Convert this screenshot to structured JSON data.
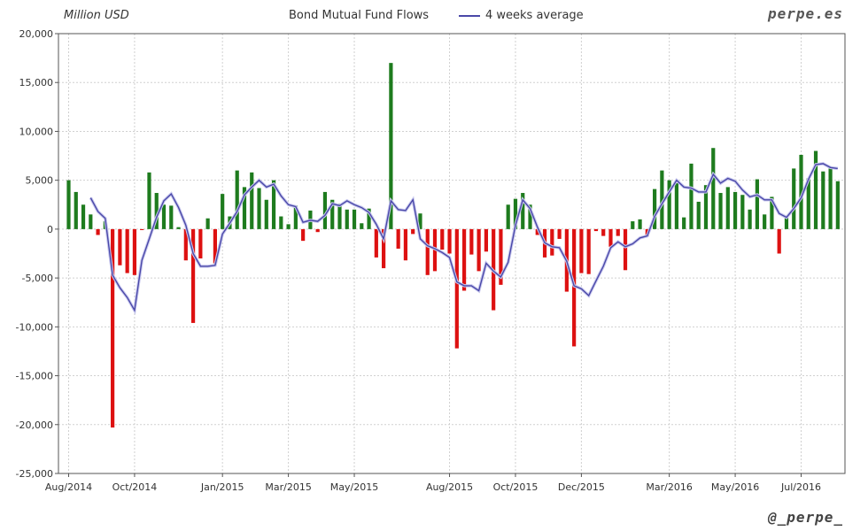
{
  "chart_data": {
    "type": "bar",
    "title": "Bond Mutual Fund Flows",
    "ylabel": "Million USD",
    "brand": "perpe.es",
    "handle": "@_perpe_",
    "ylim": [
      -25000,
      20000
    ],
    "yticks": [
      -25000,
      -20000,
      -15000,
      -10000,
      -5000,
      0,
      5000,
      10000,
      15000,
      20000
    ],
    "ytick_labels": [
      "-25,000",
      "-20,000",
      "-15,000",
      "-10,000",
      "-5,000",
      "0",
      "5,000",
      "10,000",
      "15,000",
      "20,000"
    ],
    "xtick_labels": [
      "Aug/2014",
      "Oct/2014",
      "Jan/2015",
      "Mar/2015",
      "May/2015",
      "Aug/2015",
      "Oct/2015",
      "Dec/2015",
      "Mar/2016",
      "May/2016",
      "Jul/2016"
    ],
    "xtick_weeks": [
      0,
      9,
      21,
      30,
      39,
      52,
      61,
      70,
      82,
      91,
      100
    ],
    "grid": true,
    "legend_position": "top-center",
    "colors": {
      "positive": "#1e7b1e",
      "negative": "#dd1111",
      "average": "#4a48a8"
    },
    "series": [
      {
        "name": "Bond Mutual Fund Flows",
        "values": [
          5000,
          3800,
          2500,
          1500,
          -600,
          800,
          -20300,
          -3700,
          -4500,
          -4700,
          -100,
          5800,
          3700,
          2500,
          2400,
          200,
          -3200,
          -9600,
          -3000,
          1100,
          -3500,
          3600,
          1300,
          6000,
          4300,
          5800,
          4200,
          3000,
          5000,
          1300,
          500,
          2400,
          -1200,
          1900,
          -300,
          3800,
          3000,
          2600,
          2000,
          2000,
          600,
          2100,
          -2900,
          -4000,
          17000,
          -2000,
          -3200,
          -500,
          1600,
          -4700,
          -4300,
          -2100,
          -2500,
          -12200,
          -6300,
          -2600,
          -4300,
          -2300,
          -8300,
          -5700,
          2500,
          3100,
          3700,
          2500,
          -600,
          -2900,
          -2700,
          -1000,
          -6400,
          -12000,
          -4500,
          -4600,
          -200,
          -700,
          -1800,
          -700,
          -4200,
          800,
          1000,
          -700,
          4100,
          6000,
          5000,
          4700,
          1200,
          6700,
          2800,
          4500,
          8300,
          3700,
          4300,
          3800,
          3500,
          2000,
          5100,
          1500,
          3300,
          -2500,
          1200,
          6200,
          7600,
          5200,
          8000,
          5900,
          6200,
          4900
        ]
      },
      {
        "name": "4 weeks average",
        "values": [
          null,
          null,
          null,
          3200,
          1800,
          1100,
          -4700,
          -6000,
          -7000,
          -8300,
          -3200,
          -1000,
          1200,
          2900,
          3600,
          2200,
          400,
          -2500,
          -3800,
          -3800,
          -3700,
          -500,
          600,
          1800,
          3500,
          4300,
          5000,
          4300,
          4600,
          3400,
          2500,
          2300,
          700,
          900,
          800,
          1400,
          2600,
          2400,
          2900,
          2500,
          2200,
          1700,
          500,
          -1000,
          2900,
          2000,
          1900,
          3000,
          -1000,
          -1700,
          -2000,
          -2400,
          -2900,
          -5400,
          -5800,
          -5800,
          -6300,
          -3500,
          -4300,
          -4900,
          -3400,
          400,
          3000,
          2100,
          200,
          -1400,
          -1800,
          -1900,
          -3300,
          -5800,
          -6100,
          -6800,
          -5300,
          -3800,
          -1900,
          -1300,
          -1800,
          -1500,
          -900,
          -700,
          1300,
          2600,
          3800,
          5000,
          4300,
          4200,
          3800,
          3800,
          5600,
          4700,
          5200,
          4900,
          4000,
          3300,
          3500,
          3000,
          3000,
          1600,
          1200,
          2100,
          3200,
          5100,
          6600,
          6700,
          6300,
          6200
        ]
      }
    ]
  }
}
